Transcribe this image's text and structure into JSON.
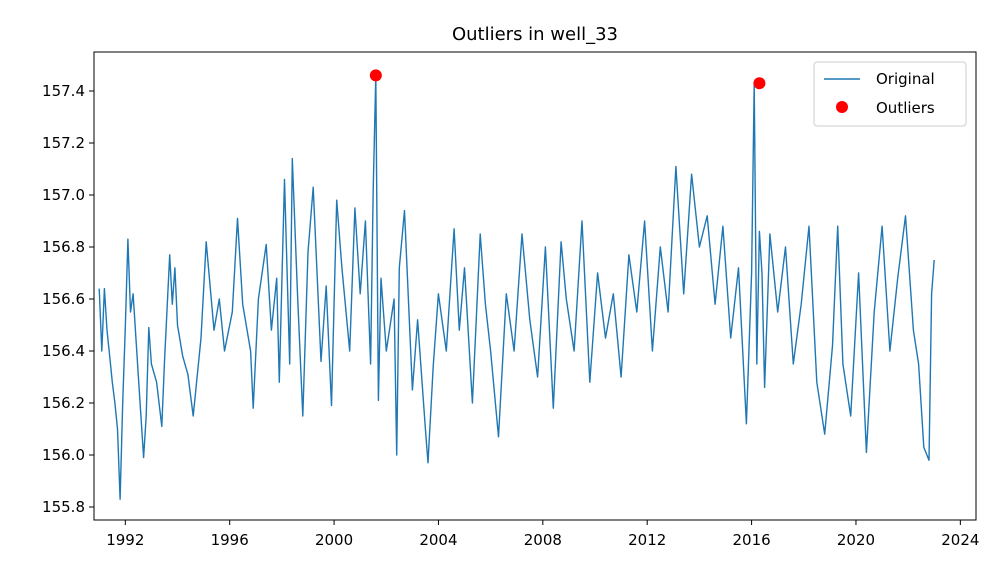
{
  "chart_data": {
    "type": "line",
    "title": "Outliers in well_33",
    "xlabel": "",
    "ylabel": "",
    "xlim": [
      1990.8,
      2024.6
    ],
    "ylim": [
      155.75,
      157.55
    ],
    "x_ticks": [
      "1992",
      "1996",
      "2000",
      "2004",
      "2008",
      "2012",
      "2016",
      "2020",
      "2024"
    ],
    "y_ticks": [
      "155.8",
      "156.0",
      "156.2",
      "156.4",
      "156.6",
      "156.8",
      "157.0",
      "157.2",
      "157.4"
    ],
    "legend": {
      "placement": "top-right",
      "entries": [
        "Original",
        "Outliers"
      ]
    },
    "colors": {
      "line": "#1f77b4",
      "outliers": "#ff0000"
    },
    "series": [
      {
        "name": "Original",
        "style": "line",
        "x": [
          1991.0,
          1991.1,
          1991.2,
          1991.3,
          1991.4,
          1991.5,
          1991.6,
          1991.7,
          1991.8,
          1991.9,
          1992.0,
          1992.1,
          1992.2,
          1992.3,
          1992.5,
          1992.7,
          1992.8,
          1992.9,
          1993.0,
          1993.2,
          1993.4,
          1993.5,
          1993.7,
          1993.8,
          1993.9,
          1994.0,
          1994.2,
          1994.4,
          1994.6,
          1994.8,
          1994.9,
          1995.1,
          1995.4,
          1995.6,
          1995.8,
          1996.1,
          1996.3,
          1996.5,
          1996.8,
          1996.9,
          1997.1,
          1997.4,
          1997.6,
          1997.8,
          1997.9,
          1998.1,
          1998.3,
          1998.4,
          1998.6,
          1998.8,
          1999.0,
          1999.2,
          1999.5,
          1999.7,
          1999.9,
          2000.1,
          2000.3,
          2000.6,
          2000.8,
          2001.0,
          2001.2,
          2001.4,
          2001.5,
          2001.6,
          2001.7,
          2001.8,
          2002.0,
          2002.3,
          2002.4,
          2002.5,
          2002.7,
          2003.0,
          2003.2,
          2003.5,
          2003.6,
          2003.8,
          2004.0,
          2004.3,
          2004.6,
          2004.8,
          2005.0,
          2005.3,
          2005.6,
          2005.8,
          2006.0,
          2006.3,
          2006.6,
          2006.9,
          2007.2,
          2007.5,
          2007.8,
          2008.1,
          2008.4,
          2008.7,
          2008.9,
          2009.2,
          2009.5,
          2009.8,
          2010.1,
          2010.4,
          2010.7,
          2011.0,
          2011.3,
          2011.6,
          2011.9,
          2012.2,
          2012.5,
          2012.8,
          2013.1,
          2013.4,
          2013.7,
          2014.0,
          2014.3,
          2014.6,
          2014.9,
          2015.2,
          2015.5,
          2015.8,
          2016.0,
          2016.1,
          2016.2,
          2016.3,
          2016.4,
          2016.5,
          2016.7,
          2017.0,
          2017.3,
          2017.6,
          2017.9,
          2018.2,
          2018.5,
          2018.8,
          2019.1,
          2019.3,
          2019.5,
          2019.8,
          2020.1,
          2020.4,
          2020.7,
          2021.0,
          2021.3,
          2021.6,
          2021.9,
          2022.2,
          2022.4,
          2022.6,
          2022.8,
          2022.9,
          2023.0
        ],
        "y": [
          156.64,
          156.4,
          156.64,
          156.48,
          156.38,
          156.28,
          156.2,
          156.1,
          155.83,
          156.2,
          156.49,
          156.83,
          156.55,
          156.62,
          156.3,
          155.99,
          156.15,
          156.49,
          156.35,
          156.28,
          156.11,
          156.36,
          156.77,
          156.58,
          156.72,
          156.5,
          156.38,
          156.31,
          156.15,
          156.35,
          156.45,
          156.82,
          156.48,
          156.6,
          156.4,
          156.55,
          156.91,
          156.58,
          156.4,
          156.18,
          156.6,
          156.81,
          156.48,
          156.68,
          156.28,
          157.06,
          156.35,
          157.14,
          156.62,
          156.15,
          156.78,
          157.03,
          156.36,
          156.65,
          156.19,
          156.98,
          156.72,
          156.4,
          156.95,
          156.62,
          156.9,
          156.35,
          157.02,
          157.46,
          156.21,
          156.68,
          156.4,
          156.6,
          156.0,
          156.72,
          156.94,
          156.25,
          156.52,
          156.1,
          155.97,
          156.34,
          156.62,
          156.4,
          156.87,
          156.48,
          156.72,
          156.2,
          156.85,
          156.58,
          156.4,
          156.07,
          156.62,
          156.4,
          156.85,
          156.52,
          156.3,
          156.8,
          156.18,
          156.82,
          156.6,
          156.4,
          156.9,
          156.28,
          156.7,
          156.45,
          156.62,
          156.3,
          156.77,
          156.55,
          156.9,
          156.4,
          156.8,
          156.55,
          157.11,
          156.62,
          157.08,
          156.8,
          156.92,
          156.58,
          156.88,
          156.45,
          156.72,
          156.12,
          156.7,
          157.43,
          156.35,
          156.86,
          156.7,
          156.26,
          156.85,
          156.55,
          156.8,
          156.35,
          156.58,
          156.88,
          156.28,
          156.08,
          156.42,
          156.88,
          156.35,
          156.15,
          156.7,
          156.01,
          156.55,
          156.88,
          156.4,
          156.68,
          156.92,
          156.48,
          156.35,
          156.03,
          155.98,
          156.62,
          156.75
        ]
      },
      {
        "name": "Outliers",
        "style": "scatter",
        "x": [
          2001.6,
          2016.3
        ],
        "y": [
          157.46,
          157.43
        ]
      }
    ]
  }
}
